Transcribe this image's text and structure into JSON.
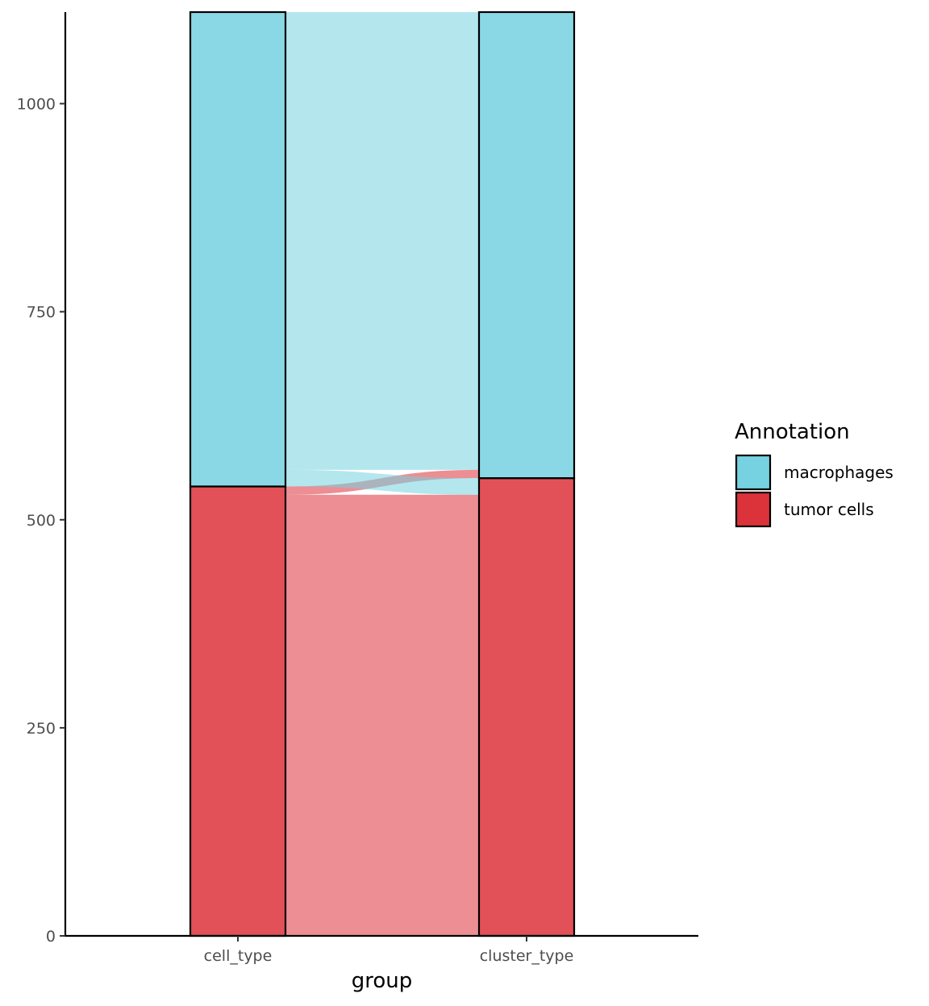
{
  "chart_data": {
    "type": "alluvial",
    "xlabel": "group",
    "ylabel": "",
    "title": "",
    "ylim": [
      0,
      1110
    ],
    "y_ticks": [
      0,
      250,
      500,
      750,
      1000
    ],
    "grid": false,
    "axes": [
      "cell_type",
      "cluster_type"
    ],
    "strata": [
      {
        "axis": "cell_type",
        "category": "tumor cells",
        "value": 540
      },
      {
        "axis": "cell_type",
        "category": "macrophages",
        "value": 570
      },
      {
        "axis": "cluster_type",
        "category": "tumor cells",
        "value": 550
      },
      {
        "axis": "cluster_type",
        "category": "macrophages",
        "value": 560
      }
    ],
    "flows": [
      {
        "from": "tumor cells",
        "to": "tumor cells",
        "value": 530,
        "fill": "tumor cells"
      },
      {
        "from": "tumor cells",
        "to": "macrophages",
        "value": 10,
        "fill": "tumor cells"
      },
      {
        "from": "macrophages",
        "to": "tumor cells",
        "value": 20,
        "fill": "macrophages"
      },
      {
        "from": "macrophages",
        "to": "macrophages",
        "value": 550,
        "fill": "macrophages"
      }
    ],
    "legend": {
      "title": "Annotation",
      "position": "right",
      "entries": [
        {
          "label": "macrophages",
          "color": "#76D1E0"
        },
        {
          "label": "tumor cells",
          "color": "#DC323A"
        }
      ]
    },
    "colors": {
      "macrophages": "#76D1E0",
      "tumor cells": "#DC323A"
    }
  }
}
